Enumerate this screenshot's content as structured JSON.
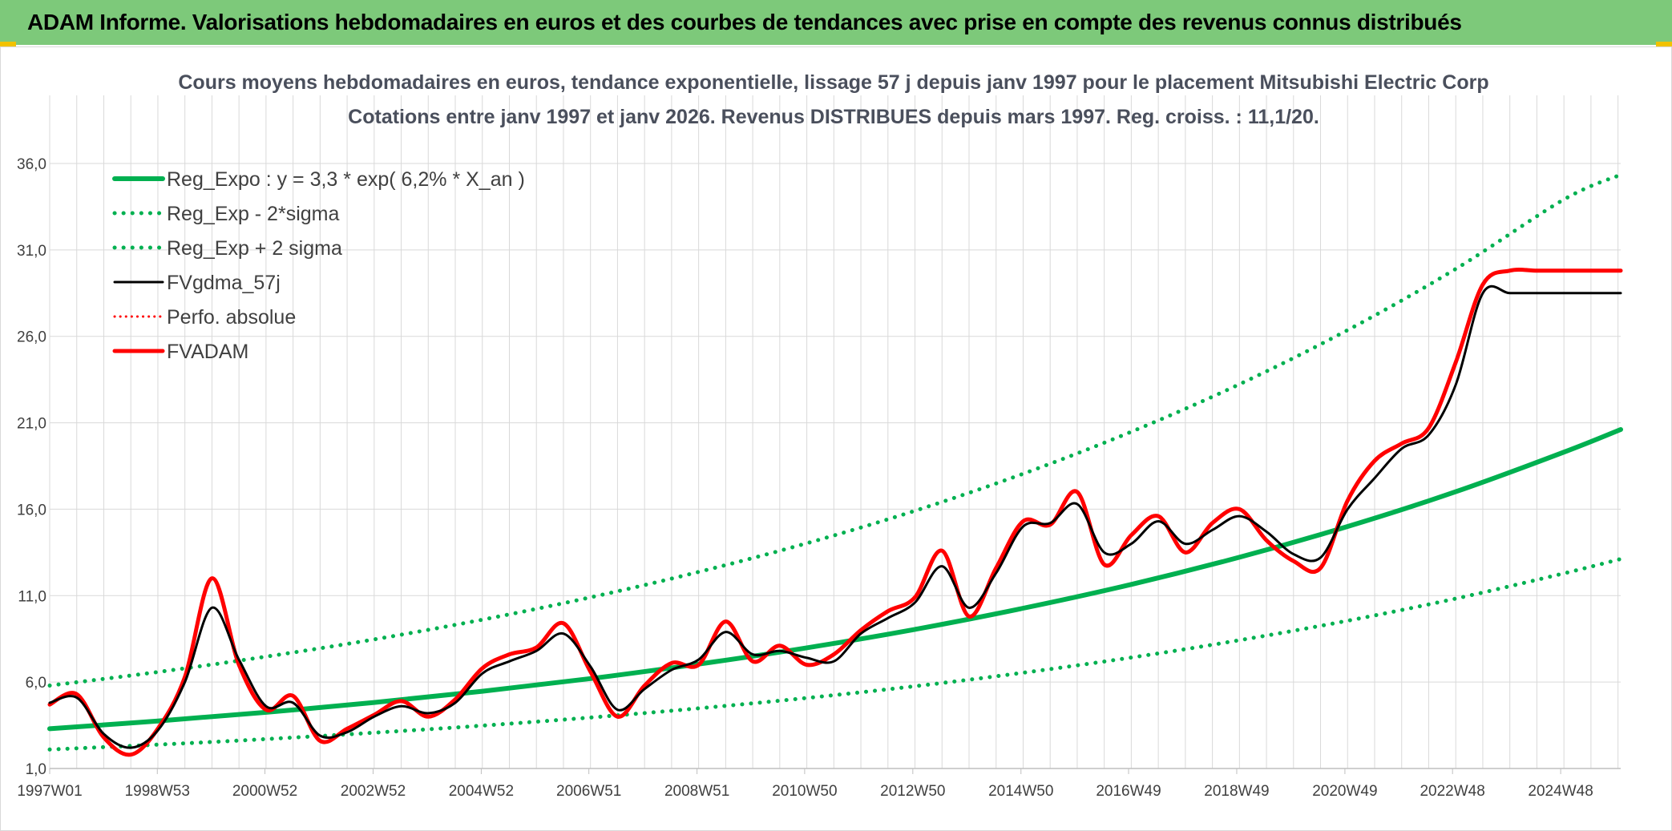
{
  "banner": {
    "title": "ADAM Informe. Valorisations hebdomadaires en euros et des courbes de tendances avec prise en compte des revenus connus distribués"
  },
  "colors": {
    "banner_bg": "#7dc97a",
    "corner_marker": "#f2c200",
    "reg_expo": "#00b050",
    "fvgdma": "#000000",
    "fvadam": "#ff0000",
    "gridline": "#d9d9d9"
  },
  "chart_data": {
    "type": "line",
    "title": [
      "Cours moyens hebdomadaires en euros, tendance exponentielle, lissage 57 j depuis janv 1997 pour le placement Mitsubishi Electric Corp",
      "Cotations entre janv 1997 et janv 2026. Revenus DISTRIBUES depuis mars 1997. Reg. croiss. : 11,1/20."
    ],
    "xlabel": "",
    "ylabel": "",
    "xlim": [
      1997.0,
      2026.05
    ],
    "ylim": [
      1.0,
      36.0
    ],
    "ytick_values": [
      1,
      6,
      11,
      16,
      21,
      26,
      31,
      36
    ],
    "ytick_labels": [
      "1,0",
      "6,0",
      "11,0",
      "16,0",
      "21,0",
      "26,0",
      "31,0",
      "36,0"
    ],
    "xtick_positions": [
      1997.0,
      1998.99,
      2000.98,
      2002.98,
      2004.98,
      2006.97,
      2008.97,
      2010.96,
      2012.96,
      2014.96,
      2016.95,
      2018.95,
      2020.95,
      2022.94,
      2024.94
    ],
    "xtick_labels": [
      "1997W01",
      "1998W53",
      "2000W52",
      "2002W52",
      "2004W52",
      "2006W51",
      "2008W51",
      "2010W50",
      "2012W50",
      "2014W50",
      "2016W49",
      "2018W49",
      "2020W49",
      "2022W48",
      "2024W48"
    ],
    "grid": true,
    "legend_position": "top-left",
    "series": [
      {
        "name": "Reg_Expo : y = 3,3 * exp( 6,2% *  X_an )",
        "style": "solid",
        "width": 6,
        "x": [
          1997.0,
          1999.0,
          2001.0,
          2003.0,
          2005.0,
          2007.0,
          2009.0,
          2011.0,
          2013.0,
          2015.0,
          2017.0,
          2019.0,
          2021.0,
          2023.0,
          2025.0,
          2026.05
        ],
        "y": [
          3.3,
          3.75,
          4.25,
          4.82,
          5.47,
          6.2,
          7.04,
          7.98,
          9.05,
          10.27,
          11.65,
          13.22,
          15.0,
          17.01,
          19.3,
          20.61
        ]
      },
      {
        "name": "Reg_Exp - 2*sigma",
        "style": "dotted",
        "width": 5,
        "x": [
          1997.0,
          1999.0,
          2001.0,
          2003.0,
          2005.0,
          2007.0,
          2009.0,
          2011.0,
          2013.0,
          2015.0,
          2017.0,
          2019.0,
          2021.0,
          2023.0,
          2025.0,
          2026.05
        ],
        "y": [
          2.1,
          2.38,
          2.7,
          3.07,
          3.48,
          3.95,
          4.48,
          5.08,
          5.76,
          6.54,
          7.42,
          8.42,
          9.55,
          10.83,
          12.29,
          13.12
        ]
      },
      {
        "name": "Reg_Exp + 2 sigma",
        "style": "dotted",
        "width": 5,
        "x": [
          1997.0,
          1999.0,
          2001.0,
          2003.0,
          2005.0,
          2007.0,
          2009.0,
          2011.0,
          2013.0,
          2015.0,
          2017.0,
          2019.0,
          2021.0,
          2023.0,
          2025.0,
          2026.05
        ],
        "y": [
          5.8,
          6.58,
          7.47,
          8.47,
          9.61,
          10.9,
          12.37,
          14.03,
          15.91,
          18.05,
          20.48,
          23.23,
          26.36,
          29.9,
          33.92,
          35.35
        ]
      },
      {
        "name": "FVgdma_57j",
        "style": "solid",
        "width": 3,
        "x": [
          1997.0,
          1997.5,
          1998.0,
          1998.5,
          1999.0,
          1999.5,
          2000.0,
          2000.5,
          2001.0,
          2001.5,
          2002.0,
          2002.5,
          2003.0,
          2003.5,
          2004.0,
          2004.5,
          2005.0,
          2005.5,
          2006.0,
          2006.5,
          2007.0,
          2007.5,
          2008.0,
          2008.5,
          2009.0,
          2009.5,
          2010.0,
          2010.5,
          2011.0,
          2011.5,
          2012.0,
          2012.5,
          2013.0,
          2013.5,
          2014.0,
          2014.5,
          2015.0,
          2015.5,
          2016.0,
          2016.5,
          2017.0,
          2017.5,
          2018.0,
          2018.5,
          2019.0,
          2019.5,
          2020.0,
          2020.5,
          2021.0,
          2021.5,
          2022.0,
          2022.5,
          2023.0,
          2023.5,
          2024.0,
          2024.5,
          2025.0,
          2025.5,
          2026.05
        ],
        "y": [
          4.8,
          5.1,
          3.0,
          2.2,
          3.2,
          6.0,
          10.3,
          7.3,
          4.6,
          4.8,
          2.9,
          3.1,
          4.0,
          4.6,
          4.2,
          4.8,
          6.5,
          7.2,
          7.8,
          8.8,
          6.9,
          4.4,
          5.6,
          6.7,
          7.3,
          8.9,
          7.6,
          7.8,
          7.4,
          7.2,
          8.8,
          9.7,
          10.6,
          12.7,
          10.3,
          12.3,
          15.0,
          15.2,
          16.3,
          13.5,
          14.0,
          15.3,
          14.0,
          14.8,
          15.6,
          14.7,
          13.4,
          13.2,
          16.0,
          17.8,
          19.5,
          20.3,
          23.2,
          28.5,
          28.5,
          28.5,
          28.5,
          28.5,
          28.5
        ],
        "_note": "smoothed series"
      },
      {
        "name": "Perfo. absolue",
        "style": "dotted",
        "width": 3,
        "x": [],
        "y": []
      },
      {
        "name": "FVADAM",
        "style": "solid",
        "width": 5,
        "x": [
          1997.0,
          1997.5,
          1998.0,
          1998.5,
          1999.0,
          1999.5,
          2000.0,
          2000.5,
          2001.0,
          2001.5,
          2002.0,
          2002.5,
          2003.0,
          2003.5,
          2004.0,
          2004.5,
          2005.0,
          2005.5,
          2006.0,
          2006.5,
          2007.0,
          2007.5,
          2008.0,
          2008.5,
          2009.0,
          2009.5,
          2010.0,
          2010.5,
          2011.0,
          2011.5,
          2012.0,
          2012.5,
          2013.0,
          2013.5,
          2014.0,
          2014.5,
          2015.0,
          2015.5,
          2016.0,
          2016.5,
          2017.0,
          2017.5,
          2018.0,
          2018.5,
          2019.0,
          2019.5,
          2020.0,
          2020.5,
          2021.0,
          2021.5,
          2022.0,
          2022.5,
          2023.0,
          2023.5,
          2024.0,
          2024.5,
          2025.0,
          2025.5,
          2026.05
        ],
        "y": [
          4.7,
          5.3,
          2.8,
          1.8,
          3.3,
          6.3,
          12.0,
          7.0,
          4.4,
          5.2,
          2.6,
          3.3,
          4.1,
          4.9,
          4.0,
          5.0,
          6.8,
          7.6,
          8.0,
          9.4,
          6.6,
          4.0,
          5.8,
          7.1,
          7.0,
          9.5,
          7.2,
          8.1,
          7.0,
          7.6,
          9.0,
          10.1,
          10.9,
          13.6,
          9.8,
          12.6,
          15.3,
          15.1,
          17.0,
          12.8,
          14.5,
          15.6,
          13.5,
          15.2,
          16.0,
          14.2,
          13.0,
          12.6,
          16.5,
          18.8,
          19.8,
          20.7,
          24.5,
          29.0,
          29.8,
          29.8,
          29.8,
          29.8,
          29.8
        ]
      }
    ]
  }
}
